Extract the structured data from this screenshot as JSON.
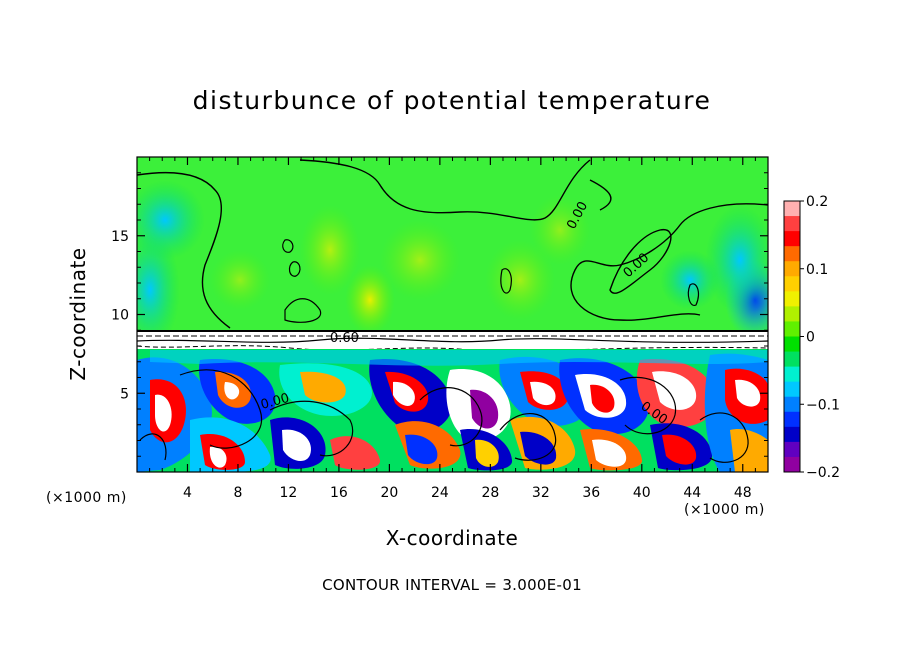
{
  "chart_data": {
    "type": "heatmap",
    "title": "disturbunce of potential temperature",
    "xlabel": "X-coordinate",
    "ylabel": "Z-coordinate",
    "x_unit_label_left": "(×1000 m)",
    "x_unit_label_right": "(×1000 m)",
    "x_ticks": [
      "4",
      "8",
      "12",
      "16",
      "20",
      "24",
      "28",
      "32",
      "36",
      "40",
      "44",
      "48"
    ],
    "y_ticks": [
      "5",
      "10",
      "15"
    ],
    "xlim": [
      0,
      50
    ],
    "ylim": [
      0,
      20
    ],
    "colorbar": {
      "range": [
        -0.2,
        0.2
      ],
      "tick_labels": [
        "0.2",
        "0.1",
        "0",
        "−0.1",
        "−0.2"
      ],
      "colors": [
        "#ffb0b0",
        "#ff4040",
        "#ff0000",
        "#ff6a00",
        "#ffaa00",
        "#ffd000",
        "#f0f000",
        "#b0f000",
        "#60f000",
        "#00e000",
        "#00e060",
        "#00f0d0",
        "#00c8ff",
        "#0080ff",
        "#0030ff",
        "#0000c8",
        "#6000c0",
        "#9000a0"
      ]
    },
    "contour_labels": [
      "0.00",
      "0.00",
      "0.00",
      "0.00",
      "0.60"
    ],
    "contour_interval_text": "CONTOUR INTERVAL = 3.000E-01"
  }
}
